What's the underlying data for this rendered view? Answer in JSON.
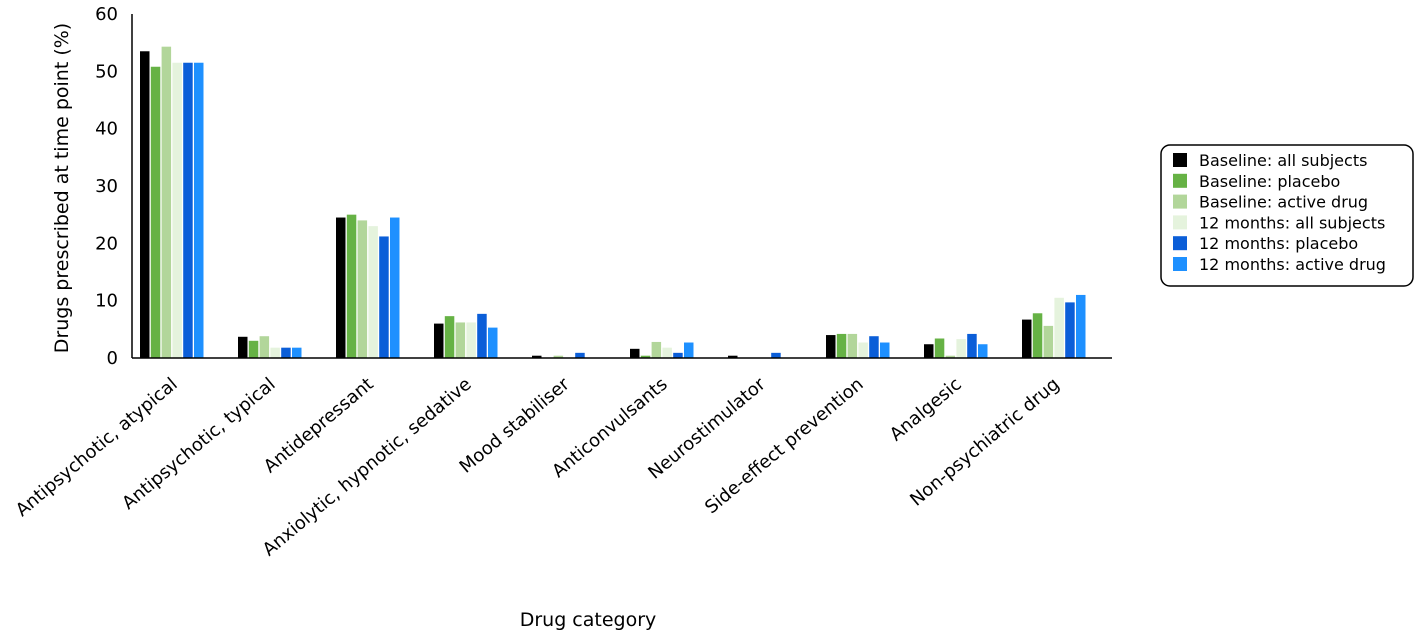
{
  "chart_data": {
    "type": "bar",
    "xlabel": "Drug category",
    "ylabel": "Drugs prescribed at time point (%)",
    "ylim": [
      0,
      60
    ],
    "yticks": [
      0,
      10,
      20,
      30,
      40,
      50,
      60
    ],
    "grid": false,
    "legend_position": "right",
    "categories": [
      "Antipsychotic, atypical",
      "Antipsychotic, typical",
      "Antidepressant",
      "Anxiolytic, hypnotic, sedative",
      "Mood stabiliser",
      "Anticonvulsants",
      "Neurostimulator",
      "Side-effect prevention",
      "Analgesic",
      "Non-psychiatric drug"
    ],
    "series": [
      {
        "name": "Baseline: all subjects",
        "color": "#000000",
        "values": [
          53.5,
          3.7,
          24.5,
          6.0,
          0.4,
          1.6,
          0.4,
          4.0,
          2.4,
          6.7
        ]
      },
      {
        "name": "Baseline: placebo",
        "color": "#66b245",
        "values": [
          50.8,
          3.0,
          25.0,
          7.3,
          0.0,
          0.4,
          0.0,
          4.2,
          3.4,
          7.8
        ]
      },
      {
        "name": "Baseline: active drug",
        "color": "#b2d69a",
        "values": [
          54.3,
          3.8,
          24.0,
          6.2,
          0.4,
          2.8,
          0.0,
          4.2,
          0.4,
          5.6
        ]
      },
      {
        "name": "12 months: all subjects",
        "color": "#e5f3dd",
        "values": [
          51.5,
          1.8,
          23.0,
          6.2,
          0.0,
          1.8,
          0.0,
          2.7,
          3.3,
          10.5
        ]
      },
      {
        "name": "12 months: placebo",
        "color": "#0b5ed8",
        "values": [
          51.5,
          1.8,
          21.2,
          7.7,
          0.9,
          0.9,
          0.9,
          3.8,
          4.2,
          9.7
        ]
      },
      {
        "name": "12 months: active drug",
        "color": "#1e90ff",
        "values": [
          51.5,
          1.8,
          24.5,
          5.3,
          0.0,
          2.7,
          0.0,
          2.7,
          2.4,
          11.0
        ]
      }
    ]
  }
}
